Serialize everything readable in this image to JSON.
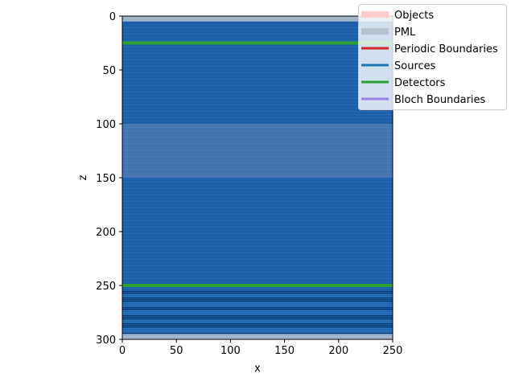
{
  "chart_data": {
    "type": "heatmap",
    "xlabel": "x",
    "ylabel": "z",
    "xlim": [
      0,
      250
    ],
    "ylim": [
      300,
      0
    ],
    "x_axis_inverted": false,
    "y_axis_inverted": true,
    "xticks": [
      0,
      50,
      100,
      150,
      200,
      250
    ],
    "yticks": [
      0,
      50,
      100,
      150,
      200,
      250,
      300
    ],
    "grid": false,
    "legend_placement": "top-right",
    "legend": [
      {
        "label": "Objects",
        "color": "#ffcccc"
      },
      {
        "label": "PML",
        "color": "#b8c4d0"
      },
      {
        "label": "Periodic Boundaries",
        "color": "#d62728"
      },
      {
        "label": "Sources",
        "color": "#1f77b4"
      },
      {
        "label": "Detectors",
        "color": "#2ca02c"
      },
      {
        "label": "Bloch Boundaries",
        "color": "#9b7fe6"
      }
    ],
    "pml_regions": [
      {
        "z_start": 0,
        "z_end": 5
      },
      {
        "z_start": 295,
        "z_end": 300
      }
    ],
    "object_regions": [
      {
        "z_start": 100,
        "z_end": 150
      }
    ],
    "detectors": [
      {
        "z": 25,
        "x_start": 0,
        "x_end": 250
      },
      {
        "z": 250,
        "x_start": 0,
        "x_end": 250
      }
    ],
    "field_colormap": "Blues"
  }
}
